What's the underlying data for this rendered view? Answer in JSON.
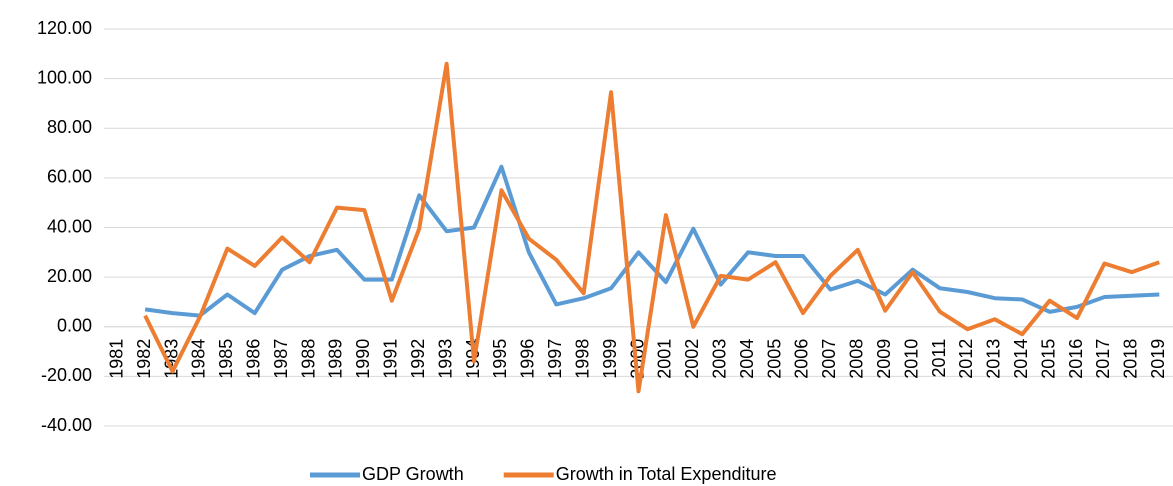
{
  "chart_data": {
    "type": "line",
    "categories": [
      "1981",
      "1982",
      "1983",
      "1984",
      "1985",
      "1986",
      "1987",
      "1988",
      "1989",
      "1990",
      "1991",
      "1992",
      "1993",
      "1994",
      "1995",
      "1996",
      "1997",
      "1998",
      "1999",
      "2000",
      "2001",
      "2002",
      "2003",
      "2004",
      "2005",
      "2006",
      "2007",
      "2008",
      "2009",
      "2010",
      "2011",
      "2012",
      "2013",
      "2014",
      "2015",
      "2016",
      "2017",
      "2018",
      "2019"
    ],
    "series": [
      {
        "name": "GDP Growth",
        "color": "#5b9bd5",
        "values": [
          null,
          7,
          5.5,
          4.5,
          13,
          5.5,
          23,
          28.5,
          31,
          19,
          19,
          53,
          38.5,
          40,
          64.5,
          30,
          9,
          11.5,
          15.5,
          30,
          18,
          39.5,
          17,
          30,
          28.5,
          28.5,
          15,
          18.5,
          13,
          23,
          15.5,
          14,
          11.5,
          11,
          6,
          8,
          12,
          12.5,
          13
        ]
      },
      {
        "name": "Growth in Total Expenditure",
        "color": "#ed7d31",
        "values": [
          null,
          4.5,
          -18,
          4,
          31.5,
          24.5,
          36,
          26,
          48,
          47,
          10.5,
          39.5,
          106,
          -14,
          55,
          35.5,
          27,
          13.5,
          94.5,
          -26,
          45,
          0,
          20.5,
          19,
          26,
          5.5,
          20.5,
          31,
          6.5,
          22,
          6,
          -1,
          3,
          -3,
          10.5,
          3.5,
          25.5,
          22,
          26
        ]
      }
    ],
    "ylim": [
      -40,
      120
    ],
    "yticks": [
      {
        "value": -40,
        "label": "-40.00"
      },
      {
        "value": -20,
        "label": "-20.00"
      },
      {
        "value": 0,
        "label": "0.00"
      },
      {
        "value": 20,
        "label": "20.00"
      },
      {
        "value": 40,
        "label": "40.00"
      },
      {
        "value": 60,
        "label": "60.00"
      },
      {
        "value": 80,
        "label": "80.00"
      },
      {
        "value": 100,
        "label": "100.00"
      },
      {
        "value": 120,
        "label": "120.00"
      }
    ],
    "grid": true,
    "legend": "bottom"
  }
}
